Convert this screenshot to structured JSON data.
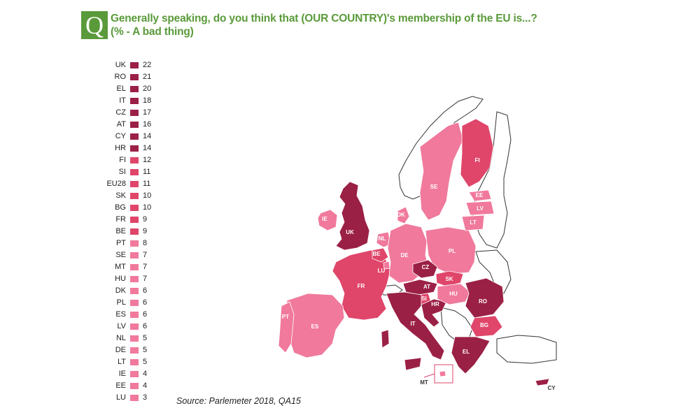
{
  "header": {
    "q_letter": "Q",
    "title_line1": "Generally speaking, do you think that (OUR COUNTRY)'s membership of the EU is...?",
    "title_line2": "(%  - A bad thing)"
  },
  "source": "Source: Parlemeter 2018, QA15",
  "colors": {
    "dark": "#9b2046",
    "mid": "#e0456a",
    "light": "#f0799c",
    "accent": "#5a9a3a"
  },
  "chart_data": {
    "type": "bar",
    "categories": [
      "UK",
      "RO",
      "EL",
      "IT",
      "CZ",
      "AT",
      "CY",
      "HR",
      "FI",
      "SI",
      "EU28",
      "SK",
      "BG",
      "FR",
      "BE",
      "PT",
      "SE",
      "MT",
      "HU",
      "DK",
      "PL",
      "ES",
      "LV",
      "NL",
      "DE",
      "LT",
      "IE",
      "EE",
      "LU"
    ],
    "values": [
      22,
      21,
      20,
      18,
      17,
      16,
      14,
      14,
      12,
      11,
      11,
      10,
      10,
      9,
      9,
      8,
      7,
      7,
      7,
      6,
      6,
      6,
      6,
      5,
      5,
      5,
      4,
      4,
      3
    ]
  },
  "map": {
    "countries": [
      {
        "code": "UK",
        "label": "UK",
        "value": 22
      },
      {
        "code": "IE",
        "label": "IE",
        "value": 4
      },
      {
        "code": "FR",
        "label": "FR",
        "value": 9
      },
      {
        "code": "ES",
        "label": "ES",
        "value": 6
      },
      {
        "code": "PT",
        "label": "PT",
        "value": 8
      },
      {
        "code": "BE",
        "label": "BE",
        "value": 9
      },
      {
        "code": "NL",
        "label": "NL",
        "value": 5
      },
      {
        "code": "LU",
        "label": "LU",
        "value": 3
      },
      {
        "code": "DE",
        "label": "DE",
        "value": 5
      },
      {
        "code": "DK",
        "label": "DK",
        "value": 6
      },
      {
        "code": "PL",
        "label": "PL",
        "value": 6
      },
      {
        "code": "CZ",
        "label": "CZ",
        "value": 17
      },
      {
        "code": "SK",
        "label": "SK",
        "value": 10
      },
      {
        "code": "AT",
        "label": "AT",
        "value": 16
      },
      {
        "code": "SI",
        "label": "SI",
        "value": 11
      },
      {
        "code": "HR",
        "label": "HR",
        "value": 14
      },
      {
        "code": "HU",
        "label": "HU",
        "value": 7
      },
      {
        "code": "RO",
        "label": "RO",
        "value": 21
      },
      {
        "code": "BG",
        "label": "BG",
        "value": 10
      },
      {
        "code": "EL",
        "label": "EL",
        "value": 20
      },
      {
        "code": "IT",
        "label": "IT",
        "value": 18
      },
      {
        "code": "MT",
        "label": "MT",
        "value": 7
      },
      {
        "code": "CY",
        "label": "CY",
        "value": 14
      },
      {
        "code": "SE",
        "label": "SE",
        "value": 7
      },
      {
        "code": "FI",
        "label": "FI",
        "value": 12
      },
      {
        "code": "EE",
        "label": "EE",
        "value": 4
      },
      {
        "code": "LV",
        "label": "LV",
        "value": 6
      },
      {
        "code": "LT",
        "label": "LT",
        "value": 5
      }
    ]
  }
}
